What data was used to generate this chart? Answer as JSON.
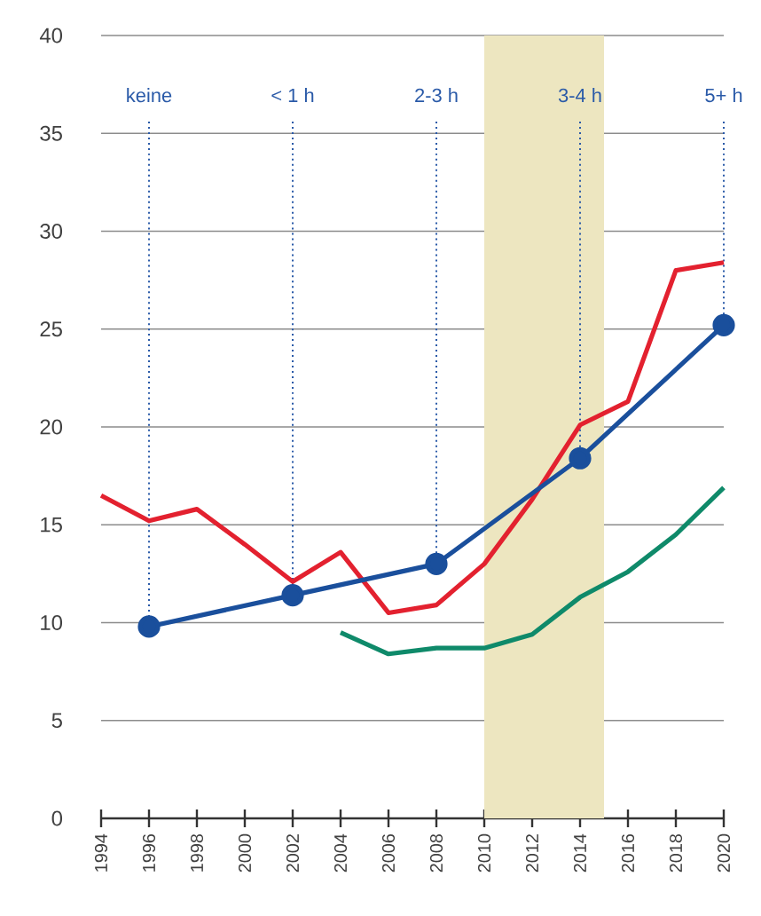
{
  "chart_data": {
    "type": "line",
    "xlim": [
      1994,
      2020
    ],
    "ylim": [
      0,
      40
    ],
    "xticks": [
      1994,
      1996,
      1998,
      2000,
      2002,
      2004,
      2006,
      2008,
      2010,
      2012,
      2014,
      2016,
      2018,
      2020
    ],
    "yticks": [
      0,
      5,
      10,
      15,
      20,
      25,
      30,
      35,
      40
    ],
    "grid": "y",
    "line_style": "solid",
    "series": [
      {
        "color": "#e3212f",
        "marker": "none",
        "x": [
          1994,
          1996,
          1998,
          2000,
          2002,
          2004,
          2006,
          2008,
          2010,
          2012,
          2014,
          2016,
          2018,
          2020
        ],
        "values": [
          16.5,
          15.2,
          15.8,
          14.0,
          12.1,
          13.6,
          10.5,
          10.9,
          13.0,
          16.3,
          20.1,
          21.3,
          28.0,
          28.4
        ]
      },
      {
        "color": "#0f8a6a",
        "marker": "none",
        "x": [
          2004,
          2006,
          2008,
          2010,
          2012,
          2014,
          2016,
          2018,
          2020
        ],
        "values": [
          9.5,
          8.4,
          8.7,
          8.7,
          9.4,
          11.3,
          12.6,
          14.5,
          16.9
        ]
      },
      {
        "color": "#1a4f9c",
        "marker": "circle",
        "x": [
          1996,
          2002,
          2008,
          2014,
          2020
        ],
        "values": [
          9.8,
          11.4,
          13.0,
          18.4,
          25.2
        ]
      }
    ],
    "bands": [
      {
        "axis": "x",
        "from": 2010,
        "to": 2015,
        "color": "#ede6c0"
      }
    ],
    "ref_lines": [
      {
        "axis": "x",
        "value": 1996,
        "label": "keine",
        "color": "#2a5aa8",
        "line_style": "dotted"
      },
      {
        "axis": "x",
        "value": 2002,
        "label": "< 1 h",
        "color": "#2a5aa8",
        "line_style": "dotted"
      },
      {
        "axis": "x",
        "value": 2008,
        "label": "2-3 h",
        "color": "#2a5aa8",
        "line_style": "dotted"
      },
      {
        "axis": "x",
        "value": 2014,
        "label": "3-4 h",
        "color": "#2a5aa8",
        "line_style": "dotted"
      },
      {
        "axis": "x",
        "value": 2020,
        "label": "5+ h",
        "color": "#2a5aa8",
        "line_style": "dotted"
      }
    ]
  }
}
